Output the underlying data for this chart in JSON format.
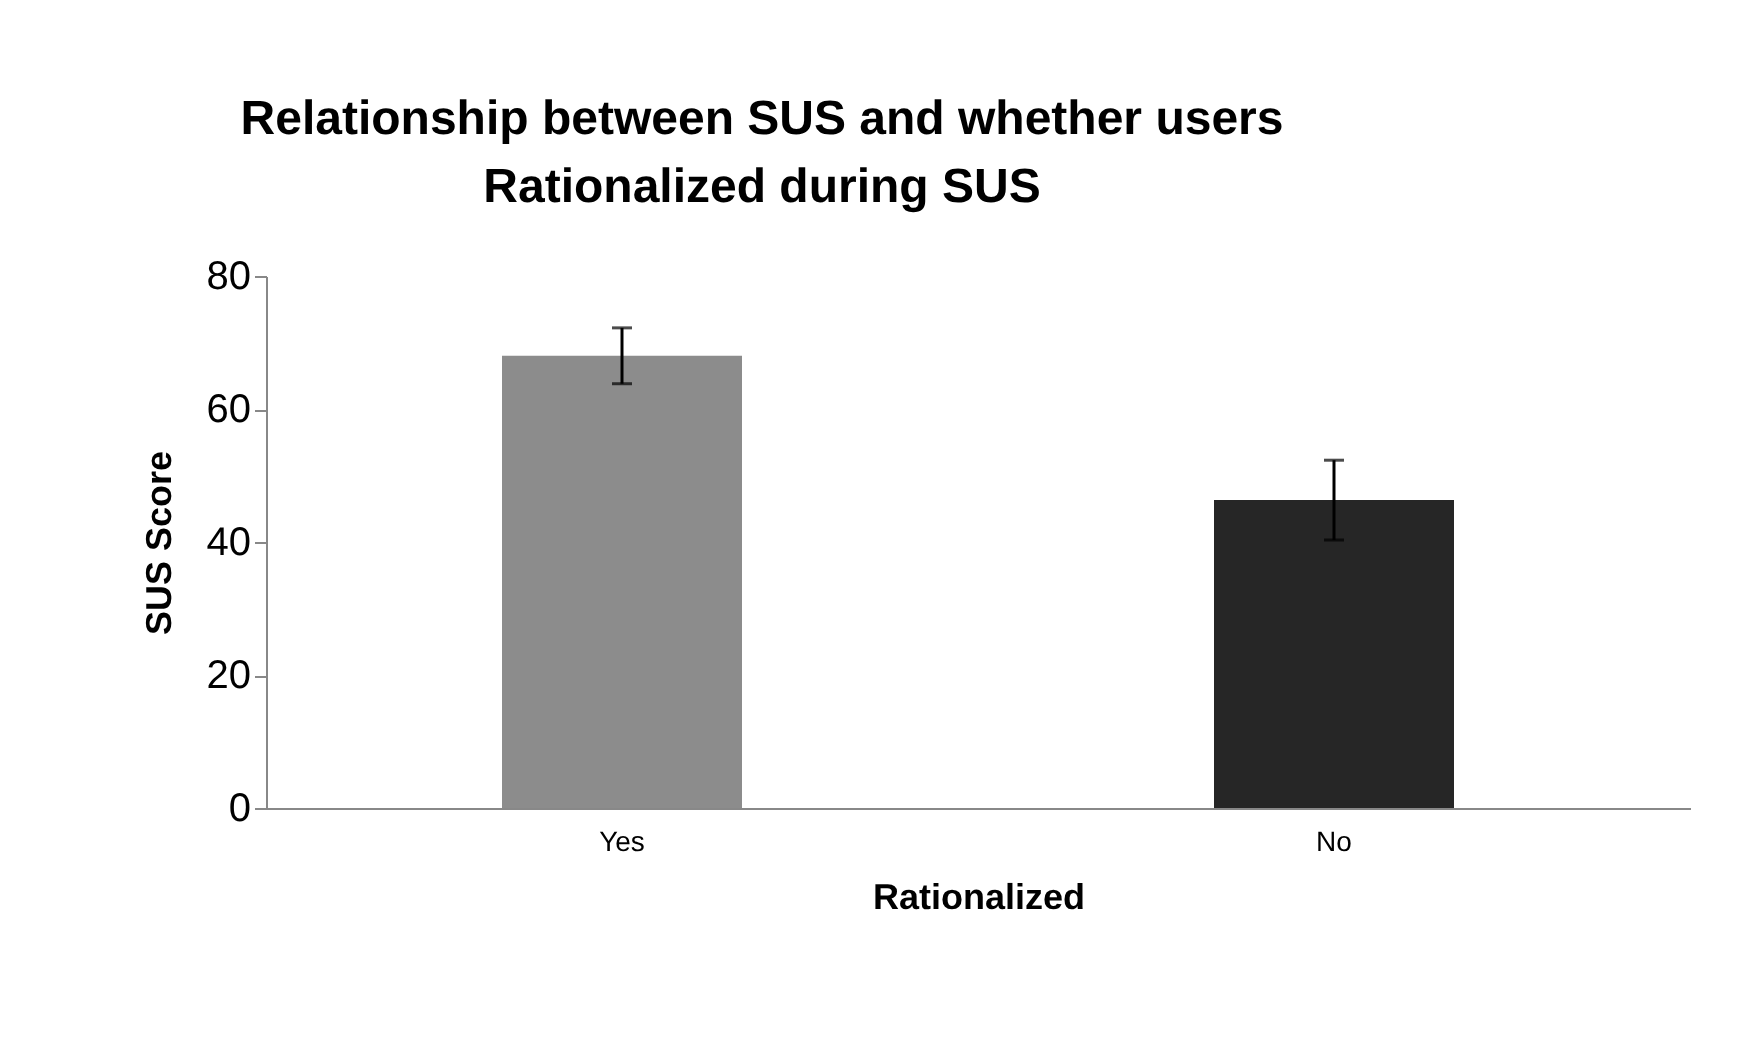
{
  "chart_data": {
    "type": "bar",
    "title": [
      "Relationship between SUS and whether users",
      "Rationalized during SUS"
    ],
    "xlabel": "Rationalized",
    "ylabel": "SUS Score",
    "categories": [
      "Yes",
      "No"
    ],
    "series": [
      {
        "colors": [
          "#8c8c8c",
          "#262626"
        ],
        "values": [
          68,
          46.3
        ],
        "errors": [
          4.2,
          6
        ]
      }
    ],
    "ylim": [
      0,
      80
    ],
    "yticks": [
      0,
      20,
      40,
      60,
      80
    ],
    "grid": false
  }
}
